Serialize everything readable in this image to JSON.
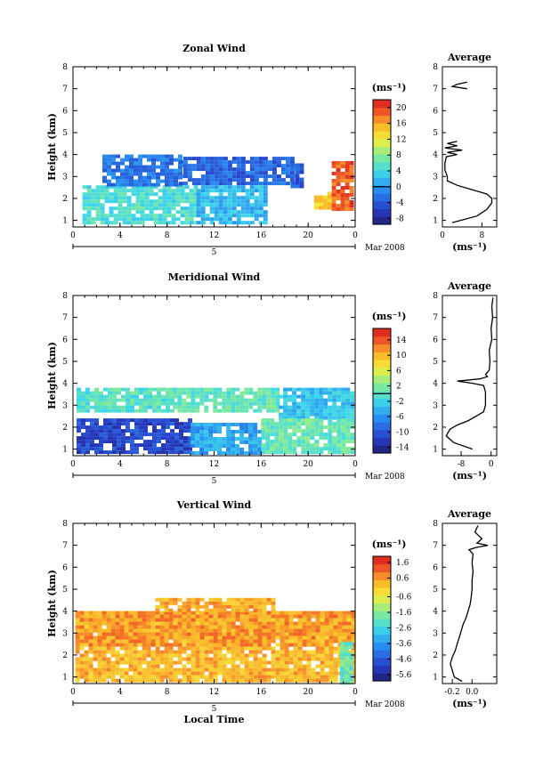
{
  "chart_data": [
    {
      "type": "heatmap",
      "title": "Zonal Wind",
      "xlabel": "",
      "ylabel": "Height (km)",
      "x_ticks": [
        "0",
        "4",
        "8",
        "12",
        "16",
        "20",
        "0"
      ],
      "xlim": [
        0,
        24
      ],
      "y_ticks": [
        "1",
        "2",
        "3",
        "4",
        "5",
        "6",
        "7",
        "8"
      ],
      "ylim": [
        0.7,
        8
      ],
      "date_day": "5",
      "date_label": "Mar 2008",
      "colorbar": {
        "unit": "(ms⁻¹)",
        "ticks": [
          "-8",
          "-4",
          "0",
          "4",
          "8",
          "12",
          "16",
          "20"
        ],
        "range": [
          -9.5,
          22
        ],
        "zero_line": 0
      },
      "layers": [
        {
          "x": [
            0.8,
            10.5
          ],
          "y": [
            0.9,
            2.6
          ],
          "value": 5
        },
        {
          "x": [
            10.5,
            16.5
          ],
          "y": [
            0.9,
            2.6
          ],
          "value": 2
        },
        {
          "x": [
            2.5,
            9
          ],
          "y": [
            2.7,
            4.0
          ],
          "value": -2
        },
        {
          "x": [
            9,
            18.5
          ],
          "y": [
            2.7,
            3.9
          ],
          "value": -3
        },
        {
          "x": [
            18.5,
            19.3
          ],
          "y": [
            2.6,
            3.6
          ],
          "value": -4
        },
        {
          "x": [
            20.5,
            21.8
          ],
          "y": [
            1.6,
            2.3
          ],
          "value": 14
        },
        {
          "x": [
            22,
            23.7
          ],
          "y": [
            1.5,
            3.7
          ],
          "value": 19
        }
      ],
      "profile": {
        "title": "Average",
        "x_ticks": [
          "0",
          "8"
        ],
        "xlim": [
          0,
          11
        ],
        "unit": "(ms⁻¹)",
        "heights": [
          0.9,
          1.2,
          1.5,
          1.8,
          2.0,
          2.2,
          2.4,
          2.6,
          2.8,
          3.0,
          3.3,
          3.6,
          3.9,
          4.0,
          4.1,
          4.2,
          4.3,
          4.4,
          4.5,
          4.6,
          7.0,
          7.1,
          7.2,
          7.3
        ],
        "values": [
          2,
          7,
          9,
          10,
          10,
          9,
          6,
          3,
          1,
          1,
          0.5,
          0.5,
          0.8,
          3,
          1,
          4,
          0.5,
          3,
          1,
          3,
          5,
          2,
          3,
          5
        ]
      }
    },
    {
      "type": "heatmap",
      "title": "Meridional Wind",
      "xlabel": "",
      "ylabel": "Height (km)",
      "x_ticks": [
        "0",
        "4",
        "8",
        "12",
        "16",
        "20",
        "0"
      ],
      "xlim": [
        0,
        24
      ],
      "y_ticks": [
        "1",
        "2",
        "3",
        "4",
        "5",
        "6",
        "7",
        "8"
      ],
      "ylim": [
        0.7,
        8
      ],
      "date_day": "5",
      "date_label": "Mar 2008",
      "colorbar": {
        "unit": "(ms⁻¹)",
        "ticks": [
          "-14",
          "-10",
          "-6",
          "-2",
          "2",
          "6",
          "10",
          "14"
        ],
        "range": [
          -15.5,
          17
        ],
        "zero_line": 0
      },
      "layers": [
        {
          "x": [
            0.3,
            8.5
          ],
          "y": [
            2.7,
            3.8
          ],
          "value": 0
        },
        {
          "x": [
            8.5,
            17.5
          ],
          "y": [
            2.7,
            3.8
          ],
          "value": 0.5
        },
        {
          "x": [
            17.5,
            23.8
          ],
          "y": [
            2.4,
            3.8
          ],
          "value": -3
        },
        {
          "x": [
            0.3,
            10
          ],
          "y": [
            0.9,
            2.4
          ],
          "value": -11
        },
        {
          "x": [
            10,
            16
          ],
          "y": [
            0.9,
            2.2
          ],
          "value": -5
        },
        {
          "x": [
            16,
            23.8
          ],
          "y": [
            0.9,
            2.4
          ],
          "value": 1
        }
      ],
      "profile": {
        "title": "Average",
        "x_ticks": [
          "-8",
          "0"
        ],
        "xlim": [
          -13,
          1.5
        ],
        "unit": "(ms⁻¹)",
        "heights": [
          1.0,
          1.3,
          1.6,
          1.9,
          2.1,
          2.3,
          2.5,
          2.7,
          3.0,
          3.3,
          3.6,
          3.9,
          4.0,
          4.1,
          4.2,
          4.3,
          4.4,
          4.6,
          5.0,
          5.5,
          6.0,
          6.5,
          7.0,
          7.5,
          7.9
        ],
        "values": [
          -5,
          -10,
          -12,
          -11,
          -9,
          -6,
          -4,
          -2,
          -1.5,
          -1.5,
          -1.5,
          -2,
          -5,
          -9,
          -3,
          -1,
          -1.5,
          -0.5,
          -0.3,
          -0.5,
          0.2,
          0,
          0.4,
          0.2,
          0.5
        ]
      }
    },
    {
      "type": "heatmap",
      "title": "Vertical Wind",
      "xlabel": "Local Time",
      "ylabel": "Height (km)",
      "x_ticks": [
        "0",
        "4",
        "8",
        "12",
        "16",
        "20",
        "0"
      ],
      "xlim": [
        0,
        24
      ],
      "y_ticks": [
        "1",
        "2",
        "3",
        "4",
        "5",
        "6",
        "7",
        "8"
      ],
      "ylim": [
        0.7,
        8
      ],
      "date_day": "5",
      "date_label": "Mar 2008",
      "colorbar": {
        "unit": "(ms⁻¹)",
        "ticks": [
          "-5.6",
          "-4.6",
          "-3.6",
          "-2.6",
          "-1.6",
          "-0.6",
          "0.6",
          "1.6"
        ],
        "range": [
          -6,
          2
        ],
        "zero_line": null
      },
      "layers": [
        {
          "x": [
            0.2,
            23.8
          ],
          "y": [
            0.8,
            4.0
          ],
          "value": 0.3
        },
        {
          "x": [
            0.2,
            23.8
          ],
          "y": [
            2.4,
            4.0
          ],
          "value": 0.6
        },
        {
          "x": [
            7,
            17
          ],
          "y": [
            4.0,
            4.6
          ],
          "value": 0.4
        },
        {
          "x": [
            22.7,
            23.8
          ],
          "y": [
            0.8,
            2.6
          ],
          "value": -2
        }
      ],
      "profile": {
        "title": "Average",
        "x_ticks": [
          "-0.2",
          "0.0"
        ],
        "xlim": [
          -0.3,
          0.25
        ],
        "unit": "(ms⁻¹)",
        "heights": [
          0.8,
          1.0,
          1.3,
          1.6,
          1.9,
          2.2,
          2.5,
          2.8,
          3.1,
          3.4,
          3.7,
          4.0,
          4.3,
          4.6,
          5.0,
          5.4,
          5.8,
          6.2,
          6.6,
          6.8,
          6.9,
          7.0,
          7.1,
          7.3,
          7.6,
          7.9
        ],
        "values": [
          -0.1,
          -0.18,
          -0.2,
          -0.22,
          -0.2,
          -0.17,
          -0.15,
          -0.13,
          -0.11,
          -0.09,
          -0.06,
          -0.04,
          -0.02,
          -0.01,
          0,
          0,
          0.01,
          0,
          0.01,
          -0.03,
          0.04,
          0.16,
          0.05,
          0.1,
          0.03,
          0.06
        ]
      }
    }
  ]
}
